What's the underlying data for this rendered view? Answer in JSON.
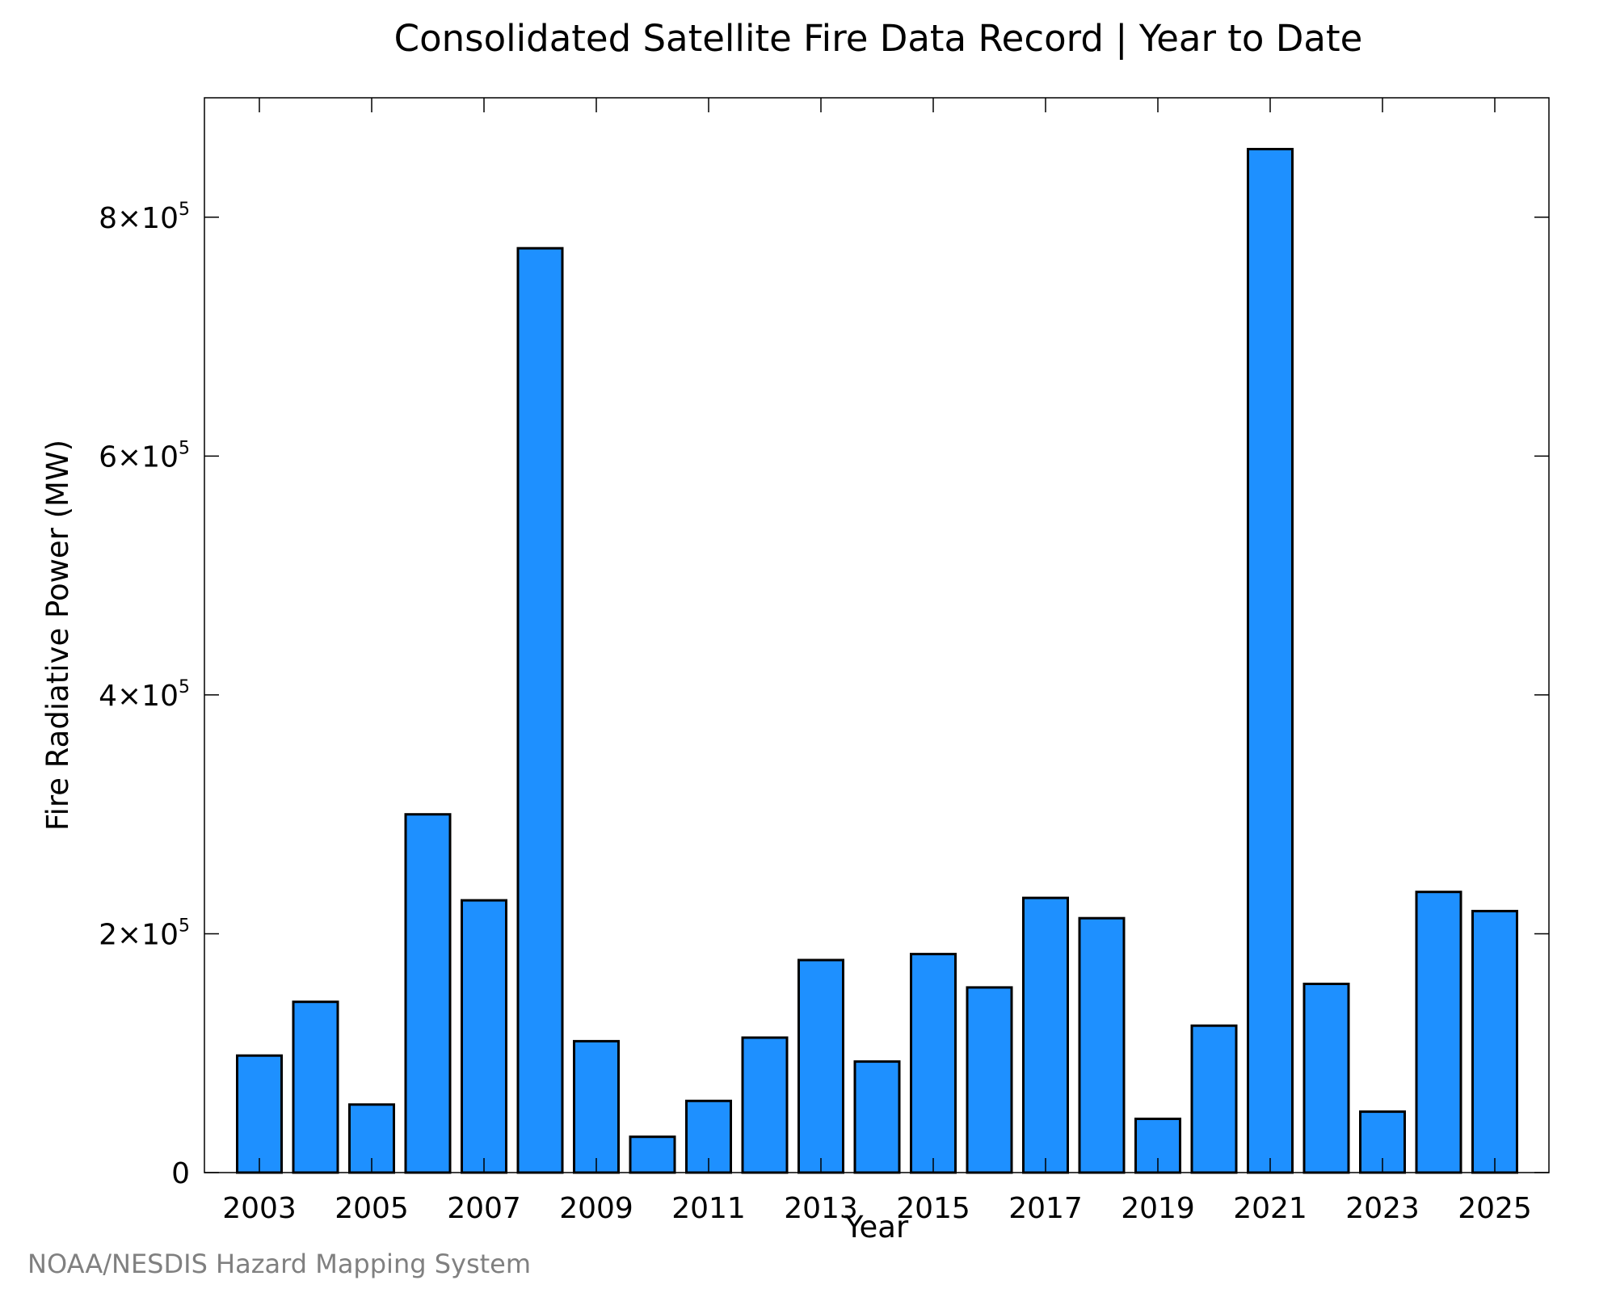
{
  "chart_data": {
    "type": "bar",
    "title": "Consolidated Satellite Fire Data Record | Year to Date",
    "xlabel": "Year",
    "ylabel": "Fire Radiative Power (MW)",
    "categories": [
      "2003",
      "2004",
      "2005",
      "2006",
      "2007",
      "2008",
      "2009",
      "2010",
      "2011",
      "2012",
      "2013",
      "2014",
      "2015",
      "2016",
      "2017",
      "2018",
      "2019",
      "2020",
      "2021",
      "2022",
      "2023",
      "2024",
      "2025"
    ],
    "values": [
      98000,
      143000,
      57000,
      300000,
      228000,
      774000,
      110000,
      30000,
      60000,
      113000,
      178000,
      93000,
      183000,
      155000,
      230000,
      213000,
      45000,
      123000,
      857000,
      158000,
      51000,
      235000,
      219000
    ],
    "xtick_labels": [
      "2003",
      "2005",
      "2007",
      "2009",
      "2011",
      "2013",
      "2015",
      "2017",
      "2019",
      "2021",
      "2023",
      "2025"
    ],
    "ylim": [
      0,
      900000
    ],
    "yticks": [
      {
        "value": 0,
        "mantissa": "0",
        "exponent": ""
      },
      {
        "value": 200000,
        "mantissa": "2×10",
        "exponent": "5"
      },
      {
        "value": 400000,
        "mantissa": "4×10",
        "exponent": "5"
      },
      {
        "value": 600000,
        "mantissa": "6×10",
        "exponent": "5"
      },
      {
        "value": 800000,
        "mantissa": "8×10",
        "exponent": "5"
      }
    ],
    "grid": false,
    "bar_color": "#1E90FF",
    "credit": "NOAA/NESDIS Hazard Mapping System"
  }
}
